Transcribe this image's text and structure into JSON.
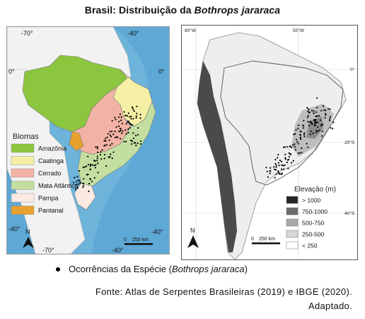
{
  "title": {
    "prefix": "Brasil: Distribuição da ",
    "species": "Bothrops jararaca"
  },
  "left_map": {
    "grid_labels": {
      "top_left": "-70°",
      "top_right": "-40°",
      "left_equator": "0°",
      "right_equator": "0°",
      "left_south": "-40°",
      "right_south": "-40°",
      "bottom_left": "-70°",
      "bottom_right": "-40°"
    },
    "legend_title": "Biomas",
    "biomes": [
      {
        "name": "Amazônia",
        "color": "#8cc63f"
      },
      {
        "name": "Caatinga",
        "color": "#f5efa5"
      },
      {
        "name": "Cerrado",
        "color": "#f2b3a4"
      },
      {
        "name": "Mata Atlântica",
        "color": "#c3dfa0"
      },
      {
        "name": "Pampa",
        "color": "#fbe9e2"
      },
      {
        "name": "Pantanal",
        "color": "#e8a12e"
      }
    ],
    "scale": {
      "zero": "0",
      "label": "250 km"
    },
    "north": "N"
  },
  "right_map": {
    "grid_labels": {
      "top_left": "80°W",
      "top_right": "50°W",
      "equator": "0°",
      "south_20": "20°S",
      "south_40": "40°S"
    },
    "legend_title": "Elevação (m)",
    "elevation_classes": [
      {
        "label": "> 1000",
        "color": "#262626"
      },
      {
        "label": "750-1000",
        "color": "#6b6b6b"
      },
      {
        "label": "500-750",
        "color": "#a9a9a9"
      },
      {
        "label": "250-500",
        "color": "#d6d6d6"
      },
      {
        "label": "< 250",
        "color": "#ffffff"
      }
    ],
    "scale": {
      "zero": "0",
      "label": "250 km"
    },
    "north": "N"
  },
  "occurrence_legend": {
    "text": "Ocorrências da Espécie (",
    "species": "Bothrops jararaca",
    "close": ")"
  },
  "source": {
    "line1": "Fonte: Atlas de Serpentes Brasileiras (2019) e IBGE (2020).",
    "line2": "Adaptado."
  }
}
